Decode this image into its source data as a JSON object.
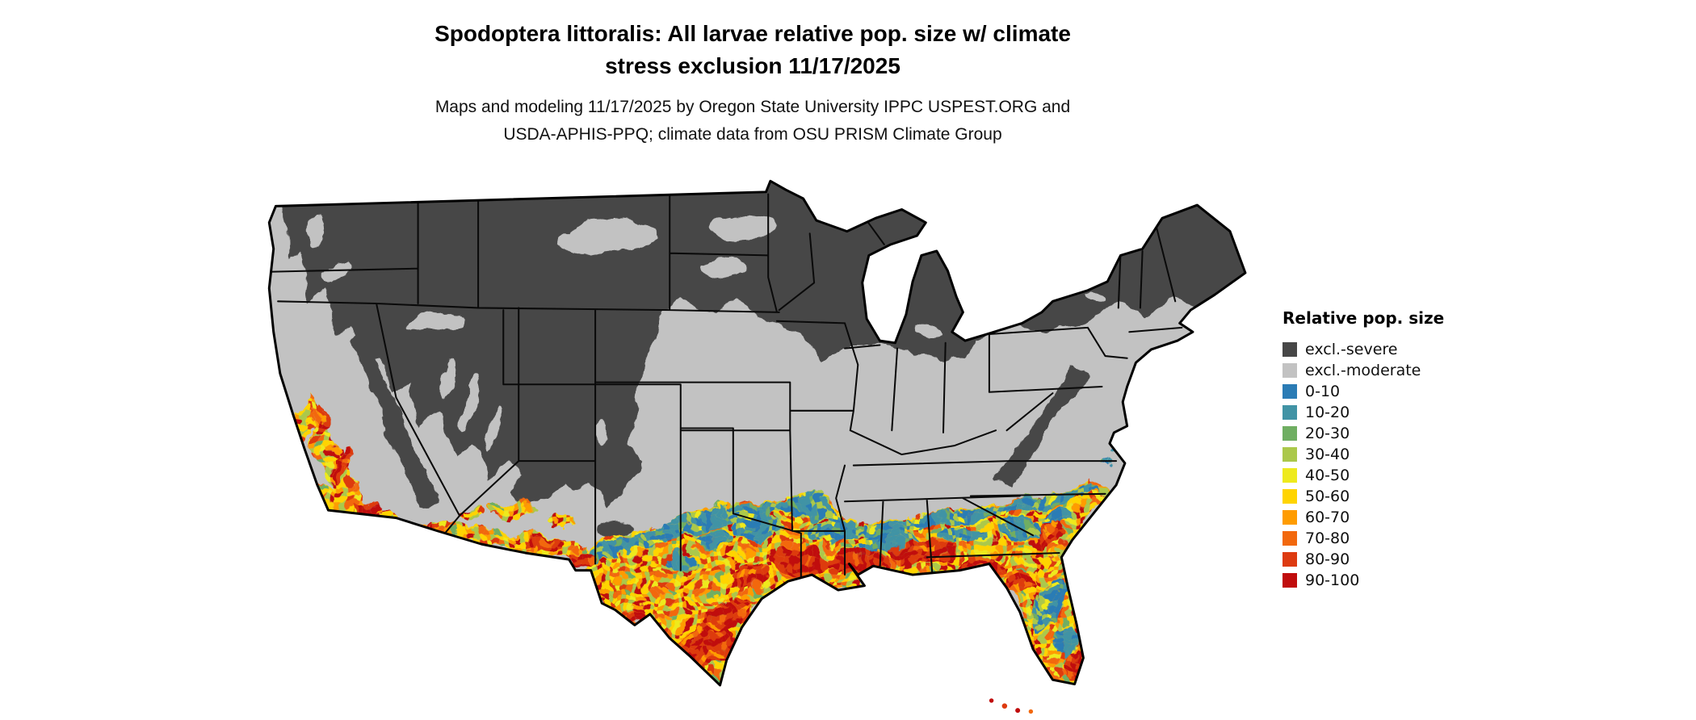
{
  "title": {
    "line1": "Spodoptera littoralis: All larvae relative pop. size w/ climate",
    "line2": "stress exclusion 11/17/2025"
  },
  "subtitle": {
    "line1": "Maps and modeling 11/17/2025 by Oregon State University IPPC USPEST.ORG and",
    "line2": "USDA-APHIS-PPQ; climate data from OSU PRISM Climate Group"
  },
  "legend": {
    "title": "Relative pop. size",
    "items": [
      {
        "label": "excl.-severe",
        "color": "#474747"
      },
      {
        "label": "excl.-moderate",
        "color": "#c2c2c2"
      },
      {
        "label": "0-10",
        "color": "#2b7cb5"
      },
      {
        "label": "10-20",
        "color": "#4193a5"
      },
      {
        "label": "20-30",
        "color": "#6fae62"
      },
      {
        "label": "30-40",
        "color": "#abc84b"
      },
      {
        "label": "40-50",
        "color": "#eeea1e"
      },
      {
        "label": "50-60",
        "color": "#ffd400"
      },
      {
        "label": "60-70",
        "color": "#ff9c00"
      },
      {
        "label": "70-80",
        "color": "#f2680d"
      },
      {
        "label": "80-90",
        "color": "#dd3a10"
      },
      {
        "label": "90-100",
        "color": "#c00c0c"
      }
    ]
  },
  "map": {
    "area": "Continental United States"
  }
}
